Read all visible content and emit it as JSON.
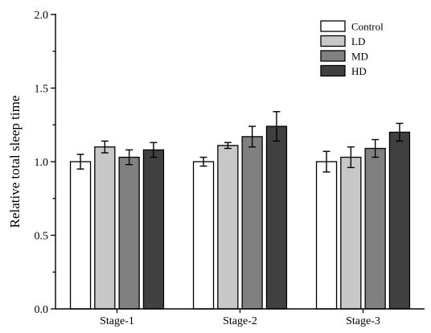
{
  "chart_data": {
    "type": "bar",
    "title": "",
    "xlabel": "",
    "ylabel": "Relative total sleep time",
    "ylim": [
      0,
      2.0
    ],
    "yticks": [
      "0.0",
      "0.5",
      "1.0",
      "1.5",
      "2.0"
    ],
    "grid": false,
    "legend_position": "top-right",
    "categories": [
      "Stage-1",
      "Stage-2",
      "Stage-3"
    ],
    "series": [
      {
        "name": "Control",
        "color": "#ffffff",
        "values": [
          1.0,
          1.0,
          1.0
        ],
        "errors": [
          0.05,
          0.03,
          0.07
        ]
      },
      {
        "name": "LD",
        "color": "#c8c8c8",
        "values": [
          1.1,
          1.11,
          1.03
        ],
        "errors": [
          0.04,
          0.02,
          0.07
        ]
      },
      {
        "name": "MD",
        "color": "#808080",
        "values": [
          1.03,
          1.17,
          1.09
        ],
        "errors": [
          0.05,
          0.07,
          0.06
        ]
      },
      {
        "name": "HD",
        "color": "#404040",
        "values": [
          1.08,
          1.24,
          1.2
        ],
        "errors": [
          0.05,
          0.1,
          0.06
        ]
      }
    ]
  }
}
